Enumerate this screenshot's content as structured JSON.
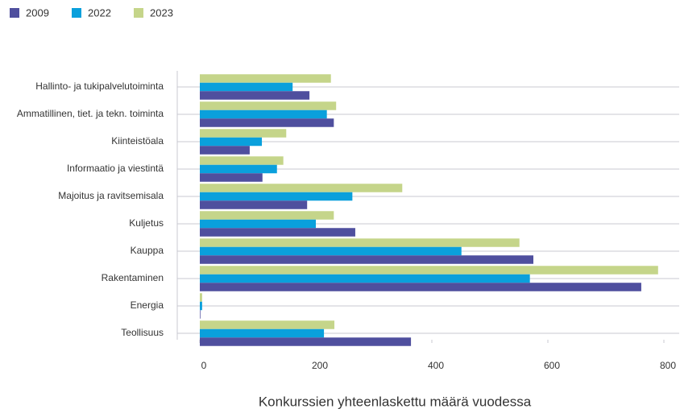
{
  "chart_data": {
    "type": "barh",
    "x_label": "Konkurssien yhteenlaskettu määrä vuodessa",
    "categories": [
      "Hallinto- ja tukipalvelutoiminta",
      "Ammatillinen, tiet. ja tekn. toiminta",
      "Kiinteistöala",
      "Informaatio ja viestintä",
      "Majoitus ja ravitsemisala",
      "Kuljetus",
      "Kauppa",
      "Rakentaminen",
      "Energia",
      "Teollisuus"
    ],
    "series": [
      {
        "name": "2009",
        "color": "#4f4f9e",
        "values": [
          189,
          231,
          86,
          108,
          185,
          268,
          575,
          761,
          1,
          364
        ]
      },
      {
        "name": "2022",
        "color": "#0aa0dc",
        "values": [
          160,
          219,
          107,
          133,
          263,
          200,
          451,
          569,
          4,
          214
        ]
      },
      {
        "name": "2023",
        "color": "#c5d58a",
        "values": [
          226,
          235,
          149,
          144,
          349,
          231,
          551,
          790,
          4,
          232
        ]
      }
    ],
    "xlim": [
      0,
      800
    ],
    "xticks": [
      0,
      200,
      400,
      600,
      800
    ],
    "grid": true,
    "legend": "top-left"
  }
}
